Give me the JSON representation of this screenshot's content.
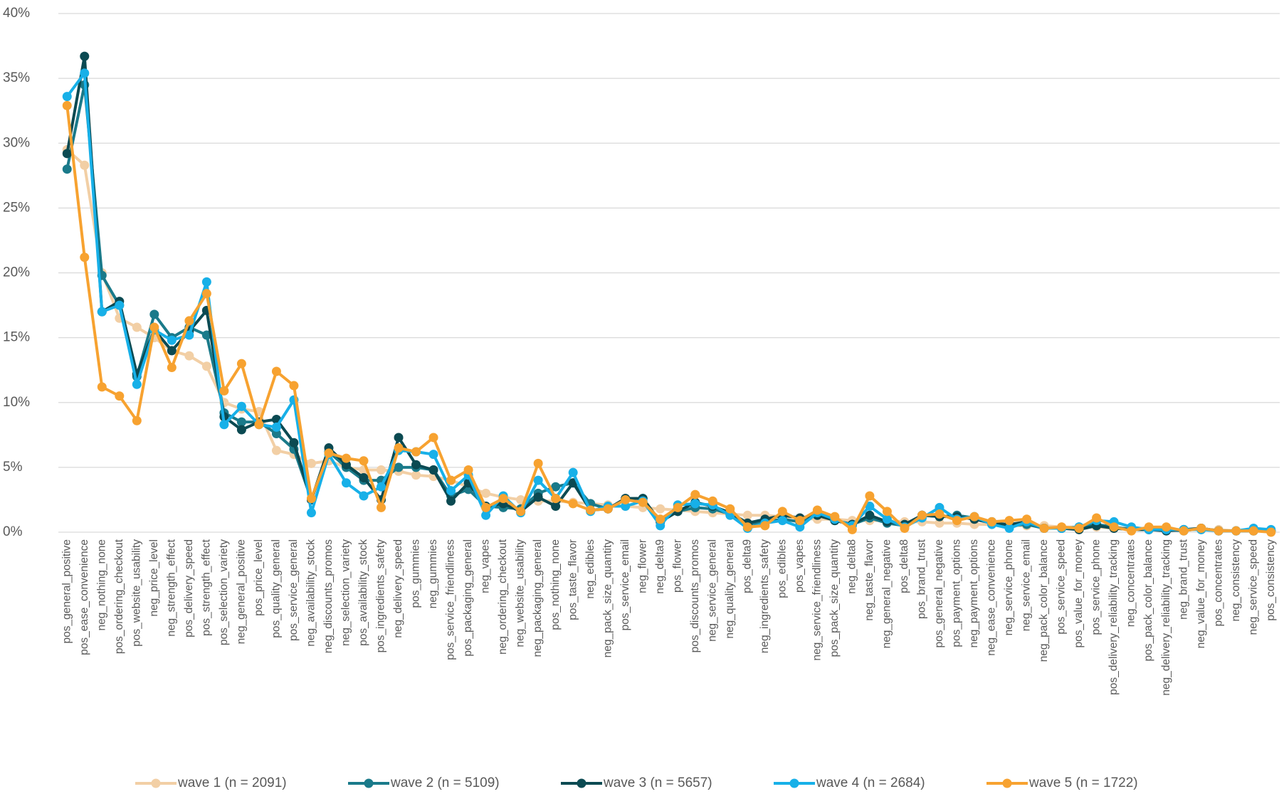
{
  "chart_data": {
    "type": "line",
    "categories": [
      "pos_general_positive",
      "pos_ease_convenience",
      "neg_nothing_none",
      "pos_ordering_checkout",
      "pos_website_usability",
      "neg_price_level",
      "neg_strength_effect",
      "pos_delivery_speed",
      "pos_strength_effect",
      "pos_selection_variety",
      "neg_general_positive",
      "pos_price_level",
      "pos_quality_general",
      "pos_service_general",
      "neg_availability_stock",
      "neg_discounts_promos",
      "neg_selection_variety",
      "pos_availability_stock",
      "pos_ingredients_safety",
      "neg_delivery_speed",
      "pos_gummies",
      "neg_gummies",
      "pos_service_friendliness",
      "pos_packaging_general",
      "neg_vapes",
      "neg_ordering_checkout",
      "neg_website_usability",
      "neg_packaging_general",
      "pos_nothing_none",
      "pos_taste_flavor",
      "neg_edibles",
      "neg_pack_size_quantity",
      "pos_service_email",
      "neg_flower",
      "neg_delta9",
      "pos_flower",
      "pos_discounts_promos",
      "neg_service_general",
      "neg_quality_general",
      "pos_delta9",
      "neg_ingredients_safety",
      "pos_edibles",
      "pos_vapes",
      "neg_service_friendliness",
      "pos_pack_size_quantity",
      "neg_delta8",
      "neg_taste_flavor",
      "neg_general_negative",
      "pos_delta8",
      "pos_brand_trust",
      "pos_general_negative",
      "pos_payment_options",
      "neg_payment_options",
      "neg_ease_convenience",
      "neg_service_phone",
      "neg_service_email",
      "neg_pack_color_balance",
      "pos_service_speed",
      "pos_value_for_money",
      "pos_service_phone",
      "pos_delivery_reliability_tracking",
      "neg_concentrates",
      "pos_pack_color_balance",
      "neg_delivery_reliability_tracking",
      "neg_brand_trust",
      "neg_value_for_money",
      "pos_concentrates",
      "neg_consistency",
      "neg_service_speed",
      "pos_consistency"
    ],
    "series": [
      {
        "name": "wave 1 (n = 2091)",
        "color": "#f2cfa5",
        "values": [
          29.5,
          28.3,
          20,
          16.5,
          15.8,
          15,
          14,
          13.6,
          12.8,
          10,
          9.5,
          9.3,
          6.3,
          6,
          5.3,
          5.5,
          5,
          4.8,
          4.8,
          4.7,
          4.4,
          4.3,
          4,
          3.5,
          3,
          2.7,
          2.5,
          2.4,
          2.4,
          2.3,
          2.2,
          2.1,
          2,
          1.9,
          1.8,
          1.7,
          1.6,
          1.5,
          1.4,
          1.3,
          1.3,
          1.2,
          1.1,
          1.0,
          1.0,
          0.9,
          0.9,
          0.9,
          0.8,
          0.8,
          0.7,
          0.7,
          0.6,
          0.6,
          0.5,
          0.5,
          0.5,
          0.4,
          0.4,
          0.4,
          0.3,
          0.3,
          0.3,
          0.2,
          0.2,
          0.2,
          0.2,
          0.1,
          0.1,
          0.1
        ]
      },
      {
        "name": "wave 2 (n = 5109)",
        "color": "#1a7a8a",
        "values": [
          28,
          34.5,
          19.8,
          17.5,
          12,
          16.8,
          15,
          15.8,
          15.2,
          9.2,
          8.5,
          8.5,
          7.6,
          6.4,
          2.5,
          6.2,
          5,
          4,
          4,
          5,
          5,
          4.8,
          2.8,
          3.3,
          2,
          1.9,
          1.8,
          3,
          3.5,
          3.8,
          2.2,
          1.8,
          2.6,
          2.6,
          0.8,
          1.6,
          1.9,
          1.8,
          1.4,
          0.6,
          0.8,
          1,
          0.8,
          1.4,
          0.9,
          0.6,
          1.1,
          0.7,
          0.5,
          1.3,
          1.2,
          1.3,
          1.1,
          0.8,
          0.5,
          0.6,
          0.3,
          0.3,
          0.4,
          0.6,
          0.4,
          0.2,
          0.2,
          0.2,
          0.1,
          0.3,
          0.1,
          0.1,
          0.1,
          0.1
        ]
      },
      {
        "name": "wave 3 (n = 5657)",
        "color": "#0b4a52",
        "values": [
          29.2,
          36.7,
          17,
          17.8,
          12.2,
          15.6,
          14,
          15.5,
          17.1,
          8.9,
          7.9,
          8.5,
          8.7,
          6.9,
          2.5,
          6.5,
          5.2,
          4.2,
          2.5,
          7.3,
          5.2,
          4.8,
          2.4,
          3.8,
          2,
          2.2,
          1.6,
          2.7,
          2,
          3.8,
          1.7,
          1.8,
          2.6,
          2.6,
          0.8,
          1.6,
          2.3,
          2,
          1.5,
          0.7,
          1,
          1.3,
          1.1,
          1.3,
          0.9,
          0.6,
          1.3,
          0.8,
          0.6,
          1.3,
          1.2,
          1.2,
          1.0,
          0.7,
          0.6,
          0.8,
          0.3,
          0.3,
          0.2,
          0.5,
          0.3,
          0.2,
          0.2,
          0.1,
          0.2,
          0.3,
          0.1,
          0.1,
          0.1,
          0.1
        ]
      },
      {
        "name": "wave 4 (n = 2684)",
        "color": "#17b0e8",
        "values": [
          33.6,
          35.4,
          17,
          17.5,
          11.4,
          15.6,
          14.8,
          15.2,
          19.3,
          8.3,
          9.7,
          8.3,
          8.1,
          10.2,
          1.5,
          6,
          3.8,
          2.8,
          3.5,
          6.3,
          6.2,
          6,
          3.2,
          4.4,
          1.3,
          2.8,
          1.5,
          4,
          2.6,
          4.6,
          1.6,
          2,
          2,
          2.4,
          0.5,
          2.1,
          2.2,
          2.1,
          1.3,
          0.3,
          0.7,
          0.9,
          0.4,
          1.5,
          1,
          0.5,
          2,
          1,
          0.4,
          1.1,
          1.9,
          1,
          1.2,
          0.6,
          0.3,
          0.8,
          0.3,
          0.3,
          0.4,
          0.9,
          0.8,
          0.4,
          0.2,
          0.2,
          0.2,
          0.2,
          0.1,
          0.1,
          0.3,
          0.2
        ]
      },
      {
        "name": "wave 5 (n = 1722)",
        "color": "#f7a230",
        "values": [
          32.9,
          21.2,
          11.2,
          10.5,
          8.6,
          15.8,
          12.7,
          16.3,
          18.4,
          10.9,
          13,
          8.3,
          12.4,
          11.3,
          2.6,
          6.1,
          5.7,
          5.5,
          1.9,
          6.5,
          6.2,
          7.3,
          4,
          4.8,
          1.9,
          2.6,
          1.6,
          5.3,
          2.6,
          2.2,
          1.7,
          1.8,
          2.5,
          2.3,
          1,
          1.9,
          2.9,
          2.4,
          1.8,
          0.4,
          0.5,
          1.6,
          0.9,
          1.7,
          1.2,
          0.2,
          2.8,
          1.6,
          0.3,
          1.3,
          1.4,
          0.9,
          1.2,
          0.8,
          0.9,
          1.0,
          0.3,
          0.4,
          0.3,
          1.1,
          0.4,
          0.1,
          0.4,
          0.4,
          0.1,
          0.3,
          0.1,
          0.1,
          0.1,
          0.0
        ]
      }
    ],
    "ylim": [
      0,
      40
    ],
    "yticks": [
      {
        "value": 0,
        "label": "0%"
      },
      {
        "value": 5,
        "label": "5%"
      },
      {
        "value": 10,
        "label": "10%"
      },
      {
        "value": 15,
        "label": "15%"
      },
      {
        "value": 20,
        "label": "20%"
      },
      {
        "value": 25,
        "label": "25%"
      },
      {
        "value": 30,
        "label": "30%"
      },
      {
        "value": 35,
        "label": "35%"
      },
      {
        "value": 40,
        "label": "40%"
      }
    ],
    "grid": true,
    "legend": "bottom"
  }
}
